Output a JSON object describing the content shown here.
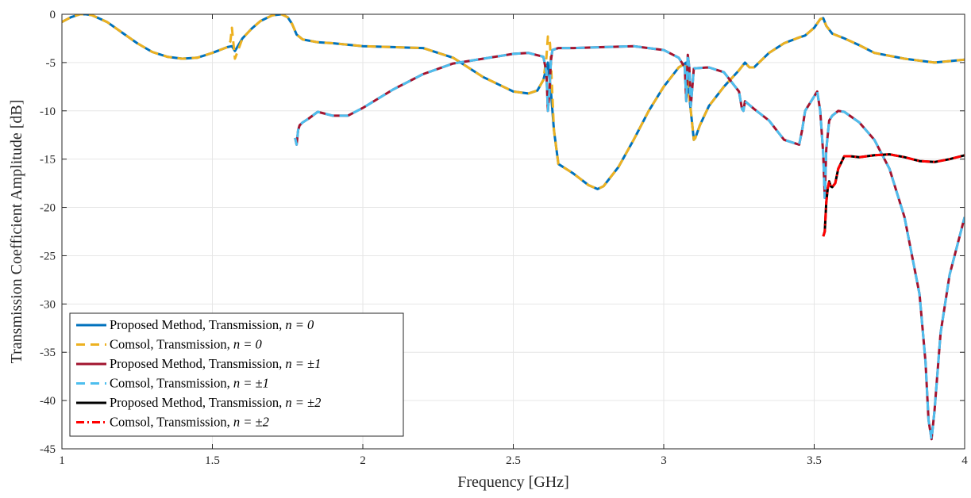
{
  "chart_data": {
    "type": "line",
    "xlabel": "Frequency [GHz]",
    "ylabel": "Transmission Coefficient Amplitude [dB]",
    "xlim": [
      1,
      4
    ],
    "ylim": [
      -45,
      0
    ],
    "xticks": [
      1,
      1.5,
      2,
      2.5,
      3,
      3.5,
      4
    ],
    "xtick_labels": [
      "1",
      "1.5",
      "2",
      "2.5",
      "3",
      "3.5",
      "4"
    ],
    "yticks": [
      0,
      -5,
      -10,
      -15,
      -20,
      -25,
      -30,
      -35,
      -40,
      -45
    ],
    "ytick_labels": [
      "0",
      "-5",
      "-10",
      "-15",
      "-20",
      "-25",
      "-30",
      "-35",
      "-40",
      "-45"
    ],
    "grid": true,
    "legend_position": "bottom-left",
    "series": [
      {
        "name": "Proposed Method, Transmission, n = 0",
        "legend_prefix": "Proposed Method, Transmission, ",
        "legend_math": "n = 0",
        "color": "#0072BD",
        "style": "solid",
        "x": [
          1.0,
          1.03,
          1.06,
          1.08,
          1.1,
          1.15,
          1.2,
          1.25,
          1.3,
          1.35,
          1.4,
          1.45,
          1.5,
          1.55,
          1.565,
          1.575,
          1.6,
          1.63,
          1.66,
          1.7,
          1.73,
          1.75,
          1.765,
          1.78,
          1.8,
          1.85,
          1.9,
          2.0,
          2.1,
          2.2,
          2.3,
          2.4,
          2.5,
          2.55,
          2.58,
          2.6,
          2.615,
          2.625,
          2.635,
          2.65,
          2.7,
          2.75,
          2.78,
          2.8,
          2.85,
          2.9,
          2.95,
          3.0,
          3.05,
          3.075,
          3.085,
          3.095,
          3.1,
          3.105,
          3.12,
          3.15,
          3.2,
          3.25,
          3.27,
          3.285,
          3.3,
          3.35,
          3.4,
          3.45,
          3.47,
          3.5,
          3.52,
          3.53,
          3.54,
          3.56,
          3.6,
          3.65,
          3.7,
          3.8,
          3.9,
          4.0
        ],
        "y": [
          -0.8,
          -0.3,
          0.0,
          0.0,
          -0.1,
          -0.8,
          -1.9,
          -3.0,
          -3.9,
          -4.4,
          -4.6,
          -4.5,
          -4.0,
          -3.4,
          -3.3,
          -3.8,
          -2.5,
          -1.5,
          -0.7,
          -0.1,
          0.0,
          -0.3,
          -1.0,
          -2.1,
          -2.6,
          -2.9,
          -3.0,
          -3.3,
          -3.4,
          -3.5,
          -4.5,
          -6.5,
          -8.0,
          -8.2,
          -7.9,
          -6.8,
          -5.0,
          -8.0,
          -12.0,
          -15.5,
          -16.5,
          -17.7,
          -18.1,
          -17.8,
          -15.8,
          -13.0,
          -10.0,
          -7.5,
          -5.5,
          -5.0,
          -8.5,
          -11.5,
          -13.0,
          -12.8,
          -11.5,
          -9.5,
          -7.5,
          -5.8,
          -5.0,
          -5.5,
          -5.5,
          -4.0,
          -3.0,
          -2.4,
          -2.2,
          -1.4,
          -0.5,
          -0.4,
          -1.2,
          -2.0,
          -2.5,
          -3.2,
          -4.0,
          -4.6,
          -5.0,
          -4.7
        ]
      },
      {
        "name": "Comsol, Transmission, n = 0",
        "legend_prefix": "Comsol, Transmission, ",
        "legend_math": "n = 0",
        "color": "#EDB120",
        "style": "dashed",
        "x": [
          1.0,
          1.03,
          1.06,
          1.08,
          1.1,
          1.15,
          1.2,
          1.25,
          1.3,
          1.35,
          1.4,
          1.45,
          1.5,
          1.55,
          1.56,
          1.565,
          1.57,
          1.575,
          1.6,
          1.63,
          1.66,
          1.7,
          1.73,
          1.75,
          1.765,
          1.78,
          1.8,
          1.85,
          1.9,
          2.0,
          2.1,
          2.2,
          2.3,
          2.4,
          2.5,
          2.55,
          2.58,
          2.6,
          2.61,
          2.615,
          2.622,
          2.625,
          2.635,
          2.65,
          2.7,
          2.75,
          2.78,
          2.8,
          2.85,
          2.9,
          2.95,
          3.0,
          3.05,
          3.075,
          3.085,
          3.095,
          3.1,
          3.105,
          3.12,
          3.15,
          3.2,
          3.25,
          3.27,
          3.285,
          3.3,
          3.35,
          3.4,
          3.45,
          3.47,
          3.5,
          3.52,
          3.53,
          3.54,
          3.56,
          3.6,
          3.65,
          3.7,
          3.8,
          3.9,
          4.0
        ],
        "y": [
          -0.8,
          -0.3,
          0.0,
          0.0,
          -0.1,
          -0.8,
          -1.9,
          -3.0,
          -3.9,
          -4.4,
          -4.6,
          -4.5,
          -4.0,
          -3.4,
          -2.8,
          -1.4,
          -3.0,
          -4.6,
          -2.5,
          -1.5,
          -0.7,
          -0.1,
          0.0,
          -0.3,
          -1.0,
          -2.1,
          -2.6,
          -2.9,
          -3.0,
          -3.3,
          -3.4,
          -3.5,
          -4.5,
          -6.5,
          -8.0,
          -8.2,
          -7.9,
          -6.8,
          -4.5,
          -2.3,
          -3.0,
          -5.0,
          -12.0,
          -15.5,
          -16.5,
          -17.7,
          -18.1,
          -17.8,
          -15.8,
          -13.0,
          -10.0,
          -7.5,
          -5.5,
          -5.0,
          -8.5,
          -11.5,
          -13.0,
          -12.8,
          -11.5,
          -9.5,
          -7.5,
          -5.8,
          -5.0,
          -5.5,
          -5.5,
          -4.0,
          -3.0,
          -2.4,
          -2.2,
          -1.4,
          -0.5,
          -0.4,
          -1.2,
          -2.0,
          -2.5,
          -3.2,
          -4.0,
          -4.6,
          -5.0,
          -4.7
        ]
      },
      {
        "name": "Proposed Method, Transmission, n = ±1",
        "legend_prefix": "Proposed Method, Transmission, ",
        "legend_math": "n = ±1",
        "color": "#A2142F",
        "style": "solid",
        "x": [
          1.775,
          1.78,
          1.785,
          1.79,
          1.8,
          1.82,
          1.85,
          1.9,
          1.95,
          2.0,
          2.1,
          2.2,
          2.3,
          2.4,
          2.5,
          2.55,
          2.6,
          2.61,
          2.615,
          2.62,
          2.625,
          2.63,
          2.64,
          2.65,
          2.7,
          2.8,
          2.9,
          3.0,
          3.05,
          3.07,
          3.075,
          3.08,
          3.085,
          3.09,
          3.1,
          3.15,
          3.2,
          3.25,
          3.26,
          3.265,
          3.27,
          3.3,
          3.35,
          3.4,
          3.45,
          3.46,
          3.47,
          3.5,
          3.51,
          3.52,
          3.53,
          3.535,
          3.54,
          3.55,
          3.56,
          3.58,
          3.6,
          3.65,
          3.7,
          3.75,
          3.8,
          3.85,
          3.87,
          3.88,
          3.89,
          3.9,
          3.92,
          3.95,
          4.0
        ],
        "y": [
          -12.8,
          -13.5,
          -12.0,
          -11.5,
          -11.2,
          -10.8,
          -10.1,
          -10.5,
          -10.5,
          -9.7,
          -7.8,
          -6.2,
          -5.1,
          -4.6,
          -4.1,
          -4.0,
          -4.4,
          -6.0,
          -10.0,
          -8.0,
          -4.8,
          -3.7,
          -3.6,
          -3.5,
          -3.5,
          -3.4,
          -3.3,
          -3.7,
          -4.5,
          -5.5,
          -9.0,
          -4.2,
          -5.5,
          -9.5,
          -5.6,
          -5.5,
          -6.0,
          -8.0,
          -9.8,
          -10.0,
          -9.0,
          -9.8,
          -11.0,
          -13.0,
          -13.5,
          -12.0,
          -10.0,
          -8.5,
          -8.0,
          -10.0,
          -14.5,
          -19.0,
          -14.0,
          -11.0,
          -10.5,
          -10.0,
          -10.1,
          -11.2,
          -13.0,
          -16.0,
          -21.0,
          -29.0,
          -36.0,
          -42.0,
          -44.0,
          -41.0,
          -33.0,
          -27.0,
          -21.0
        ]
      },
      {
        "name": "Comsol, Transmission, n = ±1",
        "legend_prefix": "Comsol, Transmission, ",
        "legend_math": "n = ±1",
        "color": "#4DBEEE",
        "style": "dashed",
        "x": [
          1.775,
          1.78,
          1.785,
          1.79,
          1.8,
          1.82,
          1.85,
          1.9,
          1.95,
          2.0,
          2.1,
          2.2,
          2.3,
          2.4,
          2.5,
          2.55,
          2.6,
          2.61,
          2.615,
          2.62,
          2.625,
          2.63,
          2.64,
          2.65,
          2.7,
          2.8,
          2.9,
          3.0,
          3.05,
          3.07,
          3.075,
          3.08,
          3.085,
          3.09,
          3.1,
          3.15,
          3.2,
          3.25,
          3.26,
          3.265,
          3.27,
          3.3,
          3.35,
          3.4,
          3.45,
          3.46,
          3.47,
          3.5,
          3.51,
          3.52,
          3.53,
          3.535,
          3.54,
          3.55,
          3.56,
          3.58,
          3.6,
          3.65,
          3.7,
          3.75,
          3.8,
          3.85,
          3.87,
          3.88,
          3.89,
          3.9,
          3.92,
          3.95,
          4.0
        ],
        "y": [
          -12.8,
          -13.5,
          -12.0,
          -11.5,
          -11.2,
          -10.8,
          -10.1,
          -10.5,
          -10.5,
          -9.7,
          -7.8,
          -6.2,
          -5.1,
          -4.6,
          -4.1,
          -4.0,
          -4.4,
          -6.0,
          -10.0,
          -8.0,
          -4.8,
          -3.7,
          -3.6,
          -3.5,
          -3.5,
          -3.4,
          -3.3,
          -3.7,
          -4.5,
          -5.5,
          -9.0,
          -4.2,
          -5.5,
          -9.5,
          -5.6,
          -5.5,
          -6.0,
          -8.0,
          -9.8,
          -10.0,
          -9.0,
          -9.8,
          -11.0,
          -13.0,
          -13.5,
          -12.0,
          -10.0,
          -8.5,
          -8.0,
          -10.0,
          -14.5,
          -19.0,
          -14.0,
          -11.0,
          -10.5,
          -10.0,
          -10.1,
          -11.2,
          -13.0,
          -16.0,
          -21.0,
          -29.0,
          -36.0,
          -42.0,
          -44.0,
          -41.0,
          -33.0,
          -27.0,
          -21.0
        ]
      },
      {
        "name": "Proposed Method, Transmission, n = ±2",
        "legend_prefix": "Proposed Method, Transmission, ",
        "legend_math": "n = ±2",
        "color": "#000000",
        "style": "solid",
        "x": [
          3.53,
          3.535,
          3.54,
          3.545,
          3.55,
          3.555,
          3.56,
          3.57,
          3.58,
          3.6,
          3.62,
          3.65,
          3.7,
          3.75,
          3.8,
          3.85,
          3.9,
          3.95,
          4.0
        ],
        "y": [
          -23.0,
          -22.5,
          -19.5,
          -18.0,
          -17.3,
          -17.8,
          -17.9,
          -17.5,
          -16.0,
          -14.7,
          -14.7,
          -14.8,
          -14.6,
          -14.5,
          -14.8,
          -15.2,
          -15.3,
          -15.0,
          -14.6
        ]
      },
      {
        "name": "Comsol, Transmission, n = ±2",
        "legend_prefix": "Comsol, Transmission, ",
        "legend_math": "n = ±2",
        "color": "#FF0000",
        "style": "dashdot",
        "x": [
          3.53,
          3.535,
          3.54,
          3.545,
          3.55,
          3.555,
          3.56,
          3.57,
          3.58,
          3.6,
          3.62,
          3.65,
          3.7,
          3.75,
          3.8,
          3.85,
          3.9,
          3.95,
          4.0
        ],
        "y": [
          -23.0,
          -22.5,
          -19.5,
          -18.0,
          -17.3,
          -17.8,
          -17.9,
          -17.5,
          -16.0,
          -14.7,
          -14.7,
          -14.8,
          -14.6,
          -14.5,
          -14.8,
          -15.2,
          -15.3,
          -15.0,
          -14.6
        ]
      }
    ]
  }
}
